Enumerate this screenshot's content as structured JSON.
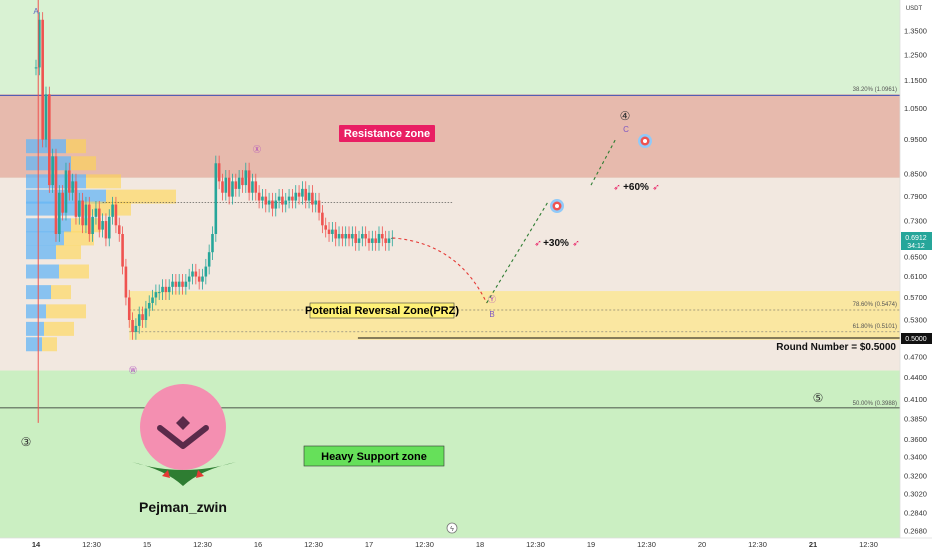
{
  "chart_data": {
    "type": "candlestick",
    "currency": "USDT",
    "price_axis": {
      "scale": "log",
      "range": [
        0.26,
        1.55
      ],
      "ticks": [
        "1.3500",
        "1.2500",
        "1.1500",
        "1.0500",
        "0.9500",
        "0.8500",
        "0.7900",
        "0.7300",
        "0.6500",
        "0.6100",
        "0.5700",
        "0.5300",
        "0.4700",
        "0.4400",
        "0.4100",
        "0.3850",
        "0.3600",
        "0.3400",
        "0.3200",
        "0.3020",
        "0.2840",
        "0.2680"
      ]
    },
    "time_axis": {
      "ticks": [
        "14",
        "12:30",
        "15",
        "12:30",
        "16",
        "12:30",
        "17",
        "12:30",
        "18",
        "12:30",
        "19",
        "12:30",
        "20",
        "12:30",
        "21",
        "12:30"
      ]
    },
    "current_price": {
      "value": "0.6912",
      "countdown": "34:12",
      "color": "#26a69a"
    },
    "round_price_label": "0.5000",
    "zones": [
      {
        "label": "Resistance zone",
        "from": 0.84,
        "to": 1.1,
        "color": "#e8b4a8",
        "label_bg": "#e91e63",
        "label_color": "#ffffff"
      },
      {
        "label": "Potential Reversal Zone(PRZ)",
        "from": 0.497,
        "to": 0.582,
        "color": "#fbe79a",
        "label_bg": "#fff176",
        "label_color": "#000000"
      },
      {
        "label": "Heavy Support zone",
        "from": 0.26,
        "to": 0.45,
        "color": "#c9eec0",
        "label_bg": "#66e05a",
        "label_color": "#000000"
      }
    ],
    "fib_levels": [
      {
        "label": "38.20% (1.0961)",
        "value": 1.0961
      },
      {
        "label": "78.60% (0.5474)",
        "value": 0.5474
      },
      {
        "label": "61.80% (0.5101)",
        "value": 0.5101
      },
      {
        "label": "50.00% (0.3988)",
        "value": 0.3988
      }
    ],
    "round_number": {
      "label": "Round Number = $0.5000",
      "value": 0.5
    },
    "wave_labels": [
      "A",
      "B",
      "C",
      "③",
      "④",
      "⑤",
      "Ⓦ",
      "Ⓧ",
      "Ⓨ"
    ],
    "targets": [
      "+30%",
      "+60%"
    ],
    "colors": {
      "up": "#26a69a",
      "down": "#ef5350",
      "resistance_line": "#3f51b5",
      "projection_down": "#e53935",
      "projection_up": "#2e7d32"
    }
  },
  "branding": {
    "name": "Pejman_zwin",
    "logo_color": "#f48fb1"
  }
}
